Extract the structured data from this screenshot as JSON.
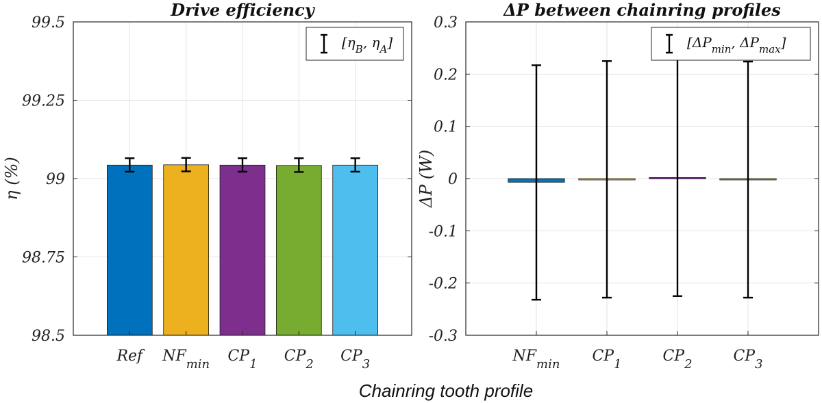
{
  "figure": {
    "xlabel": "Chainring tooth profile"
  },
  "chart_data": [
    {
      "type": "bar",
      "title": "Drive efficiency",
      "ylabel": "η (%)",
      "ylim": [
        98.5,
        99.5
      ],
      "yticks": [
        98.5,
        98.75,
        99,
        99.25,
        99.5
      ],
      "ytick_labels": [
        "98.5",
        "98.75",
        "99",
        "99.25",
        "99.5"
      ],
      "grid": true,
      "categories": [
        {
          "base": "Ref",
          "sub": ""
        },
        {
          "base": "NF",
          "sub": "min"
        },
        {
          "base": "CP",
          "sub": "1"
        },
        {
          "base": "CP",
          "sub": "2"
        },
        {
          "base": "CP",
          "sub": "3"
        }
      ],
      "values": [
        99.043,
        99.044,
        99.043,
        99.042,
        99.043
      ],
      "err_low": [
        99.022,
        99.023,
        99.022,
        99.021,
        99.022
      ],
      "err_high": [
        99.065,
        99.066,
        99.065,
        99.065,
        99.065
      ],
      "colors": [
        "#0072BD",
        "#EDB120",
        "#7E2F8E",
        "#77AC30",
        "#4DBEEE"
      ],
      "legend": {
        "placement": "top-right",
        "label": "[η_B , η_A]",
        "parts": [
          {
            "t": "[η",
            "sub": false
          },
          {
            "t": "B",
            "sub": true
          },
          {
            "t": ", η",
            "sub": false
          },
          {
            "t": "A",
            "sub": true
          },
          {
            "t": "]",
            "sub": false
          }
        ]
      }
    },
    {
      "type": "bar",
      "title": "ΔP between chainring profiles",
      "ylabel": "ΔP (W)",
      "ylim": [
        -0.3,
        0.3
      ],
      "yticks": [
        -0.3,
        -0.2,
        -0.1,
        0,
        0.1,
        0.2,
        0.3
      ],
      "ytick_labels": [
        "-0.3",
        "-0.2",
        "-0.1",
        "0",
        "0.1",
        "0.2",
        "0.3"
      ],
      "grid": true,
      "categories": [
        {
          "base": "NF",
          "sub": "min"
        },
        {
          "base": "CP",
          "sub": "1"
        },
        {
          "base": "CP",
          "sub": "2"
        },
        {
          "base": "CP",
          "sub": "3"
        }
      ],
      "values": [
        -0.007,
        -0.001,
        0.002,
        -0.001
      ],
      "err_low": [
        -0.232,
        -0.228,
        -0.225,
        -0.228
      ],
      "err_high": [
        0.217,
        0.225,
        0.229,
        0.224
      ],
      "colors": [
        "#0072BD",
        "#EDB120",
        "#7E2F8E",
        "#77AC30"
      ],
      "legend": {
        "placement": "top-right",
        "label": "[ΔP_min , ΔP_max]",
        "parts": [
          {
            "t": "[ΔP",
            "sub": false
          },
          {
            "t": "min",
            "sub": true
          },
          {
            "t": ", ΔP",
            "sub": false
          },
          {
            "t": "max",
            "sub": true
          },
          {
            "t": "]",
            "sub": false
          }
        ]
      }
    }
  ]
}
